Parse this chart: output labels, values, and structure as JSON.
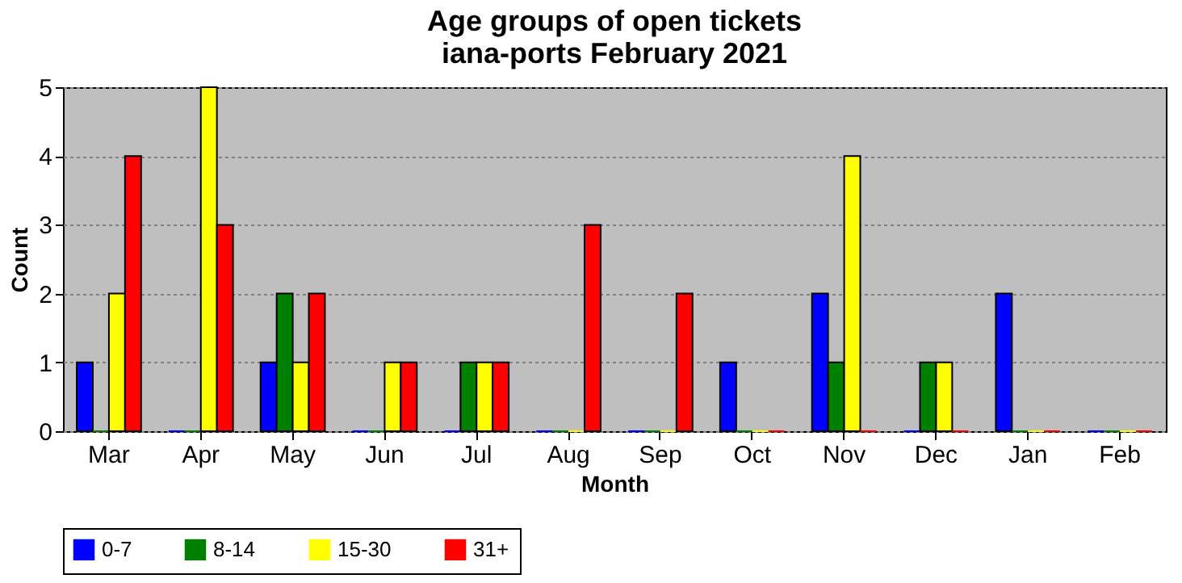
{
  "chart_data": {
    "type": "bar",
    "title": "Age groups of open tickets",
    "subtitle": "iana-ports February 2021",
    "xlabel": "Month",
    "ylabel": "Count",
    "categories": [
      "Mar",
      "Apr",
      "May",
      "Jun",
      "Jul",
      "Aug",
      "Sep",
      "Oct",
      "Nov",
      "Dec",
      "Jan",
      "Feb"
    ],
    "series": [
      {
        "name": "0-7",
        "color": "#0000ff",
        "values": [
          1,
          0,
          1,
          0,
          0,
          0,
          0,
          1,
          2,
          0,
          2,
          0
        ]
      },
      {
        "name": "8-14",
        "color": "#008000",
        "values": [
          0,
          0,
          2,
          0,
          1,
          0,
          0,
          0,
          1,
          1,
          0,
          0
        ]
      },
      {
        "name": "15-30",
        "color": "#ffff00",
        "values": [
          2,
          5,
          1,
          1,
          1,
          0,
          0,
          0,
          4,
          1,
          0,
          0
        ]
      },
      {
        "name": "31+",
        "color": "#ff0000",
        "values": [
          4,
          3,
          2,
          1,
          1,
          3,
          2,
          0,
          0,
          0,
          0,
          0
        ]
      }
    ],
    "ylim": [
      0,
      5
    ],
    "yticks": [
      0,
      1,
      2,
      3,
      4,
      5
    ],
    "grid": "y",
    "legend": "bottom"
  }
}
